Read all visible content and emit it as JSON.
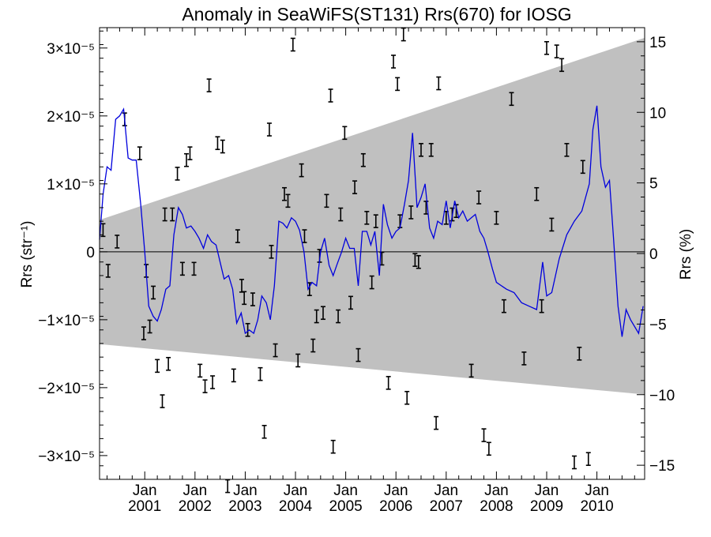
{
  "chart_data": {
    "type": "line",
    "title": "Anomaly in SeaWiFS(ST131) Rrs(670) for IOSG",
    "ylabel_left": "Rrs (str⁻¹)",
    "ylabel_right": "Rrs (%)",
    "xlim": [
      2000.1,
      2010.95
    ],
    "ylim_left": [
      -3.35e-05,
      3.3e-05
    ],
    "ylim_right": [
      -16,
      16
    ],
    "yticks_left": [
      {
        "value": 3e-05,
        "label": "3×10⁻⁵"
      },
      {
        "value": 2e-05,
        "label": "2×10⁻⁵"
      },
      {
        "value": 1e-05,
        "label": "1×10⁻⁵"
      },
      {
        "value": 0,
        "label": "0"
      },
      {
        "value": -1e-05,
        "label": "−1×10⁻⁵"
      },
      {
        "value": -2e-05,
        "label": "−2×10⁻⁵"
      },
      {
        "value": -3e-05,
        "label": "−3×10⁻⁵"
      }
    ],
    "yticks_right": [
      {
        "value": 15,
        "label": "15"
      },
      {
        "value": 10,
        "label": "10"
      },
      {
        "value": 5,
        "label": "5"
      },
      {
        "value": 0,
        "label": "0"
      },
      {
        "value": -5,
        "label": "−5"
      },
      {
        "value": -10,
        "label": "−10"
      },
      {
        "value": -15,
        "label": "−15"
      }
    ],
    "xticks": [
      {
        "value": 2001,
        "month": "Jan",
        "year": "2001"
      },
      {
        "value": 2002,
        "month": "Jan",
        "year": "2002"
      },
      {
        "value": 2003,
        "month": "Jan",
        "year": "2003"
      },
      {
        "value": 2004,
        "month": "Jan",
        "year": "2004"
      },
      {
        "value": 2005,
        "month": "Jan",
        "year": "2005"
      },
      {
        "value": 2006,
        "month": "Jan",
        "year": "2006"
      },
      {
        "value": 2007,
        "month": "Jan",
        "year": "2007"
      },
      {
        "value": 2008,
        "month": "Jan",
        "year": "2008"
      },
      {
        "value": 2009,
        "month": "Jan",
        "year": "2009"
      },
      {
        "value": 2010,
        "month": "Jan",
        "year": "2010"
      }
    ],
    "grid": false,
    "band": {
      "color": "#c0c0c0",
      "x": [
        2000.1,
        2010.95
      ],
      "upper": [
        4.7e-06,
        3.15e-05
      ],
      "lower": [
        -1.36e-05,
        -2.1e-05
      ]
    },
    "zero_line": true,
    "colors": {
      "line": "#0000dd",
      "errorbar": "#000000",
      "band": "#c0c0c0"
    },
    "series": [
      {
        "type": "line",
        "x": [
          2000.1,
          2000.17,
          2000.25,
          2000.33,
          2000.42,
          2000.5,
          2000.58,
          2000.67,
          2000.75,
          2000.83,
          2000.92,
          2001.0,
          2001.08,
          2001.17,
          2001.25,
          2001.33,
          2001.42,
          2001.5,
          2001.58,
          2001.67,
          2001.75,
          2001.83,
          2001.92,
          2002.0,
          2002.08,
          2002.17,
          2002.25,
          2002.33,
          2002.42,
          2002.5,
          2002.58,
          2002.67,
          2002.75,
          2002.83,
          2002.92,
          2003.0,
          2003.08,
          2003.17,
          2003.25,
          2003.33,
          2003.42,
          2003.5,
          2003.58,
          2003.67,
          2003.75,
          2003.83,
          2003.92,
          2004.0,
          2004.08,
          2004.17,
          2004.25,
          2004.33,
          2004.42,
          2004.5,
          2004.58,
          2004.67,
          2004.75,
          2004.83,
          2004.92,
          2005.0,
          2005.08,
          2005.17,
          2005.25,
          2005.33,
          2005.42,
          2005.5,
          2005.58,
          2005.67,
          2005.75,
          2005.83,
          2005.92,
          2006.0,
          2006.08,
          2006.17,
          2006.25,
          2006.33,
          2006.42,
          2006.5,
          2006.58,
          2006.67,
          2006.75,
          2006.83,
          2006.92,
          2007.0,
          2007.08,
          2007.17,
          2007.25,
          2007.33,
          2007.42,
          2007.5,
          2007.58,
          2007.67,
          2007.75,
          2007.83,
          2007.92,
          2008.0,
          2008.2,
          2008.35,
          2008.5,
          2008.65,
          2008.8,
          2008.92,
          2009.0,
          2009.1,
          2009.25,
          2009.4,
          2009.55,
          2009.7,
          2009.85,
          2009.92,
          2010.0,
          2010.08,
          2010.17,
          2010.25,
          2010.33,
          2010.42,
          2010.5,
          2010.58,
          2010.67,
          2010.75,
          2010.83,
          2010.92
        ],
        "y": [
          1.8e-06,
          8.5e-06,
          1.25e-05,
          1.2e-05,
          1.95e-05,
          2e-05,
          2.1e-05,
          1.38e-05,
          1.35e-05,
          1.35e-05,
          7e-06,
          0,
          -8e-06,
          -9.5e-06,
          -1.02e-05,
          -8.5e-06,
          -5.5e-06,
          -5e-06,
          2.5e-06,
          6.5e-06,
          5.5e-06,
          3.5e-06,
          3.8e-06,
          3e-06,
          2e-06,
          5e-07,
          2.5e-06,
          1.5e-06,
          1e-06,
          -1.5e-06,
          -4e-06,
          -3.5e-06,
          -5.5e-06,
          -1.05e-05,
          -9e-06,
          -1.2e-05,
          -1.15e-05,
          -1.2e-05,
          -1e-05,
          -6.5e-06,
          -7.5e-06,
          -1e-05,
          -5e-06,
          4.5e-06,
          4.2e-06,
          3.5e-06,
          5e-06,
          4.5e-06,
          3.2e-06,
          0,
          -5.5e-06,
          -4.5e-06,
          -5e-06,
          0,
          2e-06,
          -2e-06,
          -3.5e-06,
          -1.8e-06,
          0,
          2e-06,
          5e-07,
          5e-07,
          -5e-06,
          3e-06,
          3e-06,
          1e-06,
          3e-06,
          -3.5e-06,
          7e-06,
          4e-06,
          2e-06,
          3e-06,
          3.5e-06,
          7e-06,
          1.05e-05,
          1.75e-05,
          6.5e-06,
          8e-06,
          1e-05,
          3.5e-06,
          2e-06,
          4.5e-06,
          4e-06,
          7.5e-06,
          3.5e-06,
          7.5e-06,
          5e-06,
          6e-06,
          4.5e-06,
          5e-06,
          5.5e-06,
          3e-06,
          2e-06,
          0,
          -2.5e-06,
          -4.5e-06,
          -5.5e-06,
          -6e-06,
          -7.5e-06,
          -8e-06,
          -8.5e-06,
          -1.5e-06,
          -6.5e-06,
          -6e-06,
          -1e-06,
          2.5e-06,
          4.5e-06,
          6e-06,
          1e-05,
          1.8e-05,
          2.15e-05,
          1.25e-05,
          9.5e-06,
          1.05e-05,
          2e-06,
          -8e-06,
          -1.25e-05,
          -8.5e-06,
          -1e-05,
          -1.1e-05,
          -1.2e-05,
          -8e-06
        ]
      },
      {
        "type": "errorbar",
        "points": [
          [
            2000.17,
            3.2e-06
          ],
          [
            2000.27,
            -2.8e-06
          ],
          [
            2000.45,
            1.5e-06
          ],
          [
            2000.6,
            1.95e-05
          ],
          [
            2000.9,
            1.45e-05
          ],
          [
            2000.98,
            -1.2e-05
          ],
          [
            2001.03,
            -2.8e-06
          ],
          [
            2001.1,
            -1.1e-05
          ],
          [
            2001.17,
            -6e-06
          ],
          [
            2001.25,
            -1.68e-05
          ],
          [
            2001.35,
            -2.2e-05
          ],
          [
            2001.4,
            5.5e-06
          ],
          [
            2001.47,
            -1.65e-05
          ],
          [
            2001.55,
            5.5e-06
          ],
          [
            2001.65,
            1.15e-05
          ],
          [
            2001.75,
            -2.5e-06
          ],
          [
            2001.83,
            1.35e-05
          ],
          [
            2001.9,
            1.45e-05
          ],
          [
            2001.98,
            -2.5e-06
          ],
          [
            2002.1,
            -1.75e-05
          ],
          [
            2002.2,
            -1.98e-05
          ],
          [
            2002.28,
            2.45e-05
          ],
          [
            2002.35,
            -1.92e-05
          ],
          [
            2002.45,
            1.6e-05
          ],
          [
            2002.55,
            1.55e-05
          ],
          [
            2002.65,
            -3.45e-05
          ],
          [
            2002.77,
            -1.82e-05
          ],
          [
            2002.85,
            2.3e-06
          ],
          [
            2002.93,
            -5e-06
          ],
          [
            2002.98,
            -6.8e-06
          ],
          [
            2003.05,
            -1.15e-05
          ],
          [
            2003.15,
            -7e-06
          ],
          [
            2003.3,
            -1.8e-05
          ],
          [
            2003.38,
            -2.65e-05
          ],
          [
            2003.48,
            1.8e-05
          ],
          [
            2003.52,
            0
          ],
          [
            2003.6,
            -1.45e-05
          ],
          [
            2003.78,
            8.5e-06
          ],
          [
            2003.85,
            7.5e-06
          ],
          [
            2003.95,
            3.05e-05
          ],
          [
            2004.05,
            -1.6e-05
          ],
          [
            2004.12,
            1.2e-05
          ],
          [
            2004.18,
            2.3e-06
          ],
          [
            2004.28,
            -5.5e-06
          ],
          [
            2004.35,
            -1.38e-05
          ],
          [
            2004.42,
            -9.5e-06
          ],
          [
            2004.48,
            -6e-07
          ],
          [
            2004.55,
            -9e-06
          ],
          [
            2004.62,
            7.5e-06
          ],
          [
            2004.7,
            2.3e-05
          ],
          [
            2004.75,
            -2.87e-05
          ],
          [
            2004.85,
            -9.5e-06
          ],
          [
            2004.9,
            5.5e-06
          ],
          [
            2004.98,
            1.75e-05
          ],
          [
            2005.1,
            -7.5e-06
          ],
          [
            2005.18,
            9.5e-06
          ],
          [
            2005.25,
            -1.52e-05
          ],
          [
            2005.35,
            1.35e-05
          ],
          [
            2005.42,
            5e-06
          ],
          [
            2005.52,
            -4.5e-06
          ],
          [
            2005.6,
            4.5e-06
          ],
          [
            2005.72,
            -1e-06
          ],
          [
            2005.85,
            -1.93e-05
          ],
          [
            2005.95,
            2.8e-05
          ],
          [
            2006.03,
            2.47e-05
          ],
          [
            2006.08,
            4.5e-06
          ],
          [
            2006.15,
            3.2e-05
          ],
          [
            2006.22,
            -2.15e-05
          ],
          [
            2006.3,
            5.8e-06
          ],
          [
            2006.38,
            -1.2e-06
          ],
          [
            2006.45,
            -1.5e-06
          ],
          [
            2006.5,
            1.5e-05
          ],
          [
            2006.6,
            6.5e-06
          ],
          [
            2006.7,
            1.5e-05
          ],
          [
            2006.8,
            -2.52e-05
          ],
          [
            2006.85,
            2.48e-05
          ],
          [
            2007.0,
            5e-06
          ],
          [
            2007.12,
            5.5e-06
          ],
          [
            2007.2,
            6e-06
          ],
          [
            2007.5,
            -1.75e-05
          ],
          [
            2007.65,
            8e-06
          ],
          [
            2007.75,
            -2.7e-05
          ],
          [
            2007.85,
            -2.9e-05
          ],
          [
            2008.0,
            5e-06
          ],
          [
            2008.15,
            -8e-06
          ],
          [
            2008.3,
            2.25e-05
          ],
          [
            2008.55,
            -1.57e-05
          ],
          [
            2008.8,
            8.5e-06
          ],
          [
            2008.9,
            -8e-06
          ],
          [
            2009.0,
            3e-05
          ],
          [
            2009.1,
            4e-06
          ],
          [
            2009.2,
            2.95e-05
          ],
          [
            2009.3,
            2.75e-05
          ],
          [
            2009.4,
            1.5e-05
          ],
          [
            2009.55,
            -3.1e-05
          ],
          [
            2009.65,
            -1.5e-05
          ],
          [
            2009.72,
            1.25e-05
          ],
          [
            2009.83,
            -3.05e-05
          ]
        ]
      }
    ]
  }
}
